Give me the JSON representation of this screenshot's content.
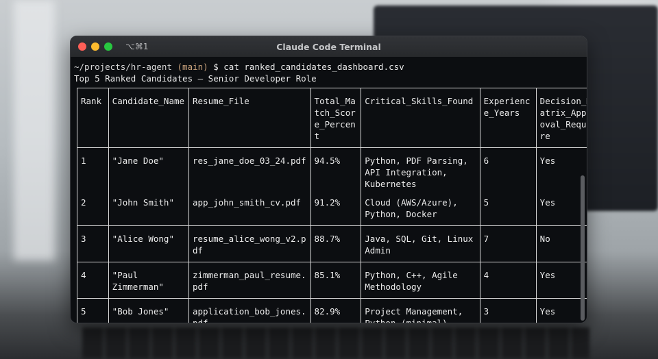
{
  "window": {
    "shortcut": "⌥⌘1",
    "title": "Claude Code Terminal"
  },
  "terminal": {
    "prompt": {
      "path": "~/projects/hr-agent",
      "branch": "(main)",
      "symbol": "$"
    },
    "command": "cat ranked_candidates_dashboard.csv",
    "heading": "Top 5 Ranked Candidates – Senior Developer Role",
    "table": {
      "headers": [
        "Rank",
        "Candidate_Name",
        "Resume_File",
        "Total_Match_Score_Percent",
        "Critical_Skills_Found",
        "Experience_Years",
        "Decision_Matrix_Approval_Require"
      ],
      "rows": [
        [
          "1",
          "\"Jane Doe\"",
          "res_jane_doe_03_24.pdf",
          "94.5%",
          "Python, PDF Parsing, API Integration, Kubernetes",
          "6",
          "Yes"
        ],
        [
          "2",
          "\"John Smith\"",
          "app_john_smith_cv.pdf",
          "91.2%",
          "Cloud (AWS/Azure), Python, Docker",
          "5",
          "Yes"
        ],
        [
          "3",
          "\"Alice Wong\"",
          "resume_alice_wong_v2.pdf",
          "88.7%",
          "Java, SQL, Git, Linux Admin",
          "7",
          "No"
        ],
        [
          "4",
          "\"Paul Zimmerman\"",
          "zimmerman_paul_resume.pdf",
          "85.1%",
          "Python, C++, Agile Methodology",
          "4",
          "Yes"
        ],
        [
          "5",
          "\"Bob Jones\"",
          "application_bob_jones.pdf",
          "82.9%",
          "Project Management, Python (minimal)",
          "3",
          "Yes"
        ]
      ]
    }
  }
}
